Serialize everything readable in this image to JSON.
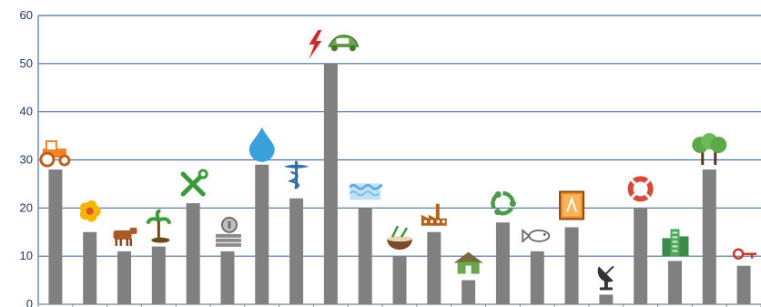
{
  "chart_data": {
    "type": "bar",
    "title": "",
    "xlabel": "",
    "ylabel": "",
    "ylim": [
      0,
      60
    ],
    "yticks": [
      0,
      10,
      20,
      30,
      40,
      50,
      60
    ],
    "grid": true,
    "bar_color": "#808080",
    "grid_color": "#4a6fa5",
    "tick_label_color": "#1f3864",
    "categories": [
      {
        "icon": "tractor-icon",
        "value": 28
      },
      {
        "icon": "flower-icon",
        "value": 15
      },
      {
        "icon": "cow-icon",
        "value": 11
      },
      {
        "icon": "palm-tree-icon",
        "value": 12
      },
      {
        "icon": "tools-icon",
        "value": 21
      },
      {
        "icon": "coins-icon",
        "value": 11
      },
      {
        "icon": "water-drop-icon",
        "value": 29
      },
      {
        "icon": "caduceus-icon",
        "value": 22
      },
      {
        "icon": "energy-car-icon",
        "value": 50
      },
      {
        "icon": "water-waves-icon",
        "value": 20
      },
      {
        "icon": "food-bowl-icon",
        "value": 10
      },
      {
        "icon": "factory-icon",
        "value": 15
      },
      {
        "icon": "house-icon",
        "value": 5
      },
      {
        "icon": "recycle-icon",
        "value": 17
      },
      {
        "icon": "fish-icon",
        "value": 11
      },
      {
        "icon": "book-icon",
        "value": 16
      },
      {
        "icon": "satellite-dish-icon",
        "value": 2
      },
      {
        "icon": "life-ring-icon",
        "value": 20
      },
      {
        "icon": "buildings-icon",
        "value": 9
      },
      {
        "icon": "trees-icon",
        "value": 28
      },
      {
        "icon": "key-icon",
        "value": 8
      }
    ]
  }
}
